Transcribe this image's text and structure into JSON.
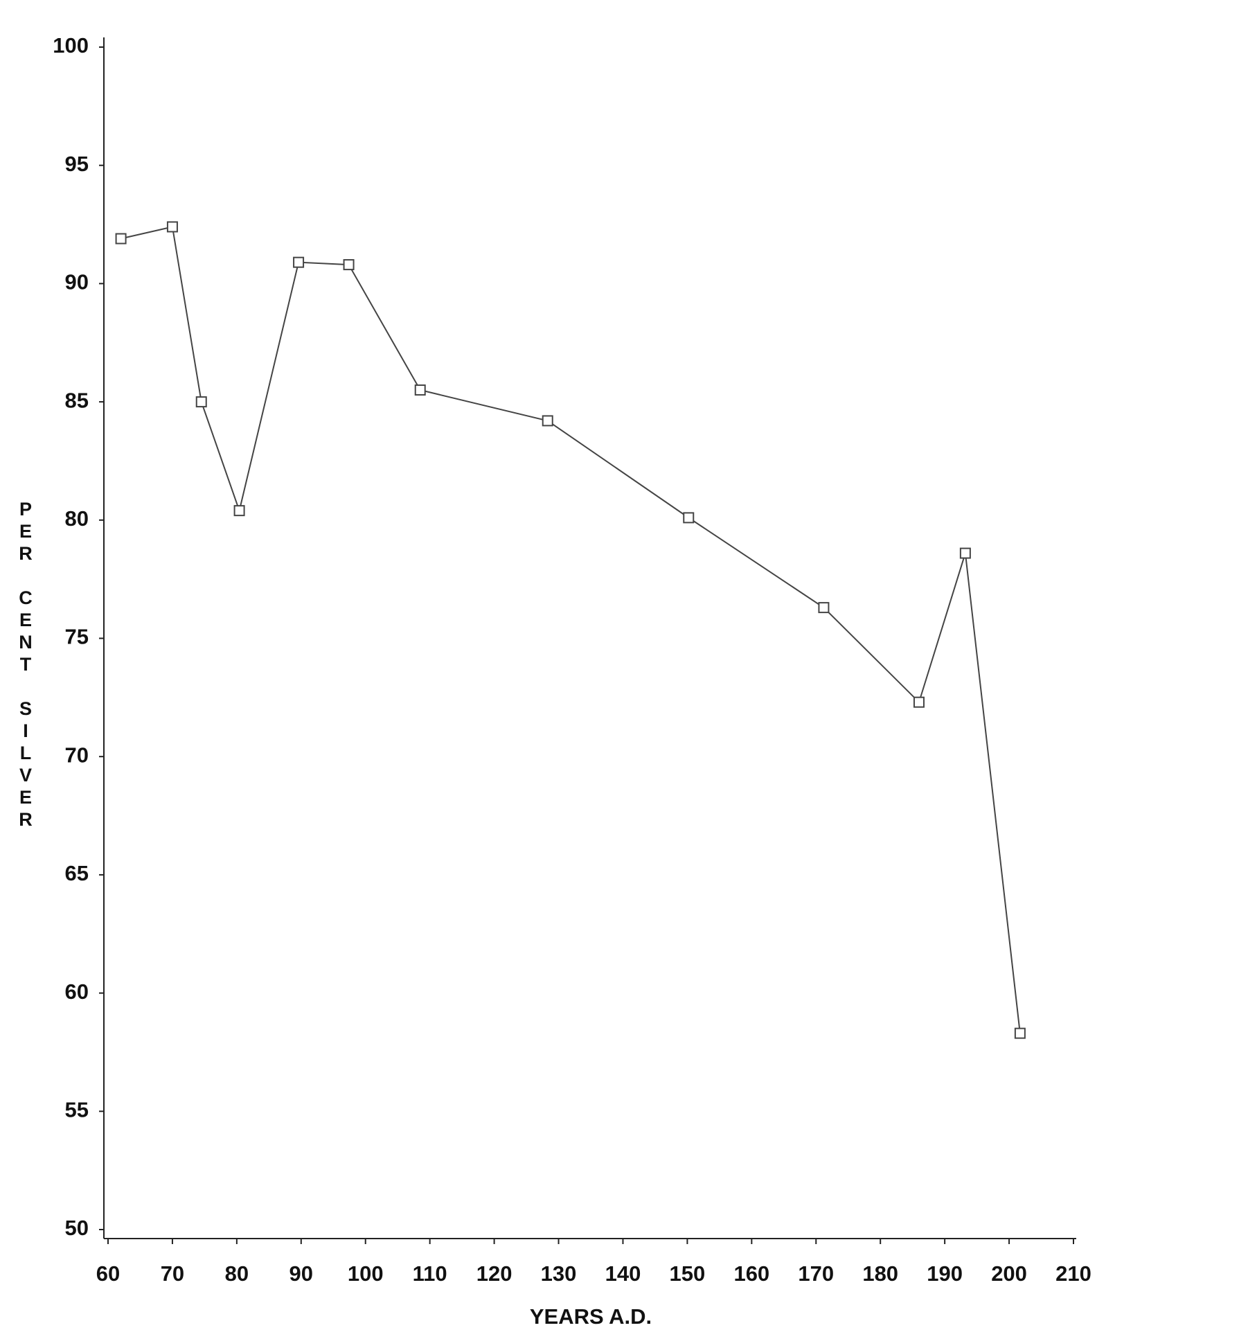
{
  "chart_data": {
    "type": "line",
    "x_label": "YEARS A.D.",
    "y_label": "PER CENT SILVER",
    "x": [
      62,
      70,
      74.5,
      80.4,
      89.6,
      97.4,
      108.5,
      128.3,
      150.2,
      171.2,
      186,
      193.2,
      201.7
    ],
    "series": [
      {
        "color": "#444444",
        "values": [
          91.9,
          92.4,
          85.0,
          80.4,
          90.9,
          90.8,
          85.5,
          84.2,
          80.1,
          76.3,
          72.3,
          78.6,
          58.3
        ]
      }
    ],
    "xlim": [
      60,
      210
    ],
    "xticks": [
      60,
      70,
      80,
      90,
      100,
      110,
      120,
      130,
      140,
      150,
      160,
      170,
      180,
      190,
      200,
      210
    ],
    "ylim": [
      50,
      100
    ],
    "yticks": [
      50,
      55,
      60,
      65,
      70,
      75,
      80,
      85,
      90,
      95,
      100
    ],
    "marker": "square"
  }
}
